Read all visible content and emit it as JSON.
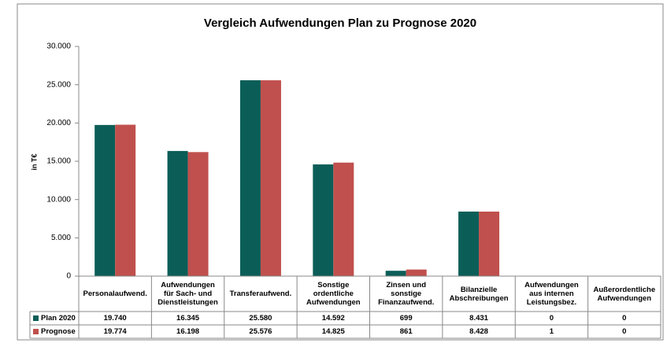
{
  "chart_data": {
    "type": "bar",
    "title": "Vergleich Aufwendungen Plan zu Prognose 2020",
    "y_label": "in T€",
    "categories": [
      "Personalaufwend.",
      "Aufwendungen\nfür Sach- und\nDienstleistungen",
      "Transferaufwend.",
      "Sonstige\nordentliche\nAufwendungen",
      "Zinsen und\nsonstige\nFinanzaufwend.",
      "Bilanzielle\nAbschreibungen",
      "Aufwendungen\naus internen\nLeistungsbez.",
      "Außerordentliche\nAufwendungen"
    ],
    "series": [
      {
        "name": "Plan 2020",
        "color": "#0b5e58",
        "values": [
          19740,
          16345,
          25580,
          14592,
          699,
          8431,
          0,
          0
        ],
        "value_labels": [
          "19.740",
          "16.345",
          "25.580",
          "14.592",
          "699",
          "8.431",
          "0",
          "0"
        ]
      },
      {
        "name": "Prognose",
        "color": "#c0504d",
        "values": [
          19774,
          16198,
          25576,
          14825,
          861,
          8428,
          1,
          0
        ],
        "value_labels": [
          "19.774",
          "16.198",
          "25.576",
          "14.825",
          "861",
          "8.428",
          "1",
          "0"
        ]
      }
    ],
    "ylim": [
      0,
      30000
    ],
    "yticks": [
      0,
      {
        "value": 5000,
        "label": "5.000"
      },
      {
        "value": 10000,
        "label": "10.000"
      },
      {
        "value": 15000,
        "label": "15.000"
      },
      {
        "value": 20000,
        "label": "20.000"
      },
      {
        "value": 25000,
        "label": "25.000"
      },
      {
        "value": 30000,
        "label": "30.000"
      }
    ],
    "grid": false
  }
}
